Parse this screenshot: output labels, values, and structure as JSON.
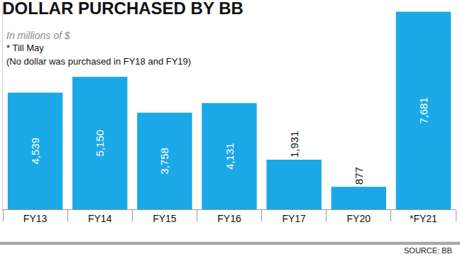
{
  "chart_data": {
    "type": "bar",
    "title": "DOLLAR PURCHASED BY BB",
    "subtitle": "In millions of $",
    "annotations": [
      "* Till May",
      "(No dollar was purchased in FY18 and FY19)"
    ],
    "source": "SOURCE: BB",
    "categories": [
      "FY13",
      "FY14",
      "FY15",
      "FY16",
      "FY17",
      "FY20",
      "*FY21"
    ],
    "values": [
      4539,
      5150,
      3758,
      4131,
      1931,
      877,
      7681
    ],
    "value_labels": [
      "4,539",
      "5,150",
      "3,758",
      "4,131",
      "1,931",
      "877",
      "7,681"
    ],
    "color": "#1ba8e6",
    "ylim": [
      0,
      8000
    ],
    "yticks": [],
    "data_labels": true,
    "tick_labels": "x"
  }
}
